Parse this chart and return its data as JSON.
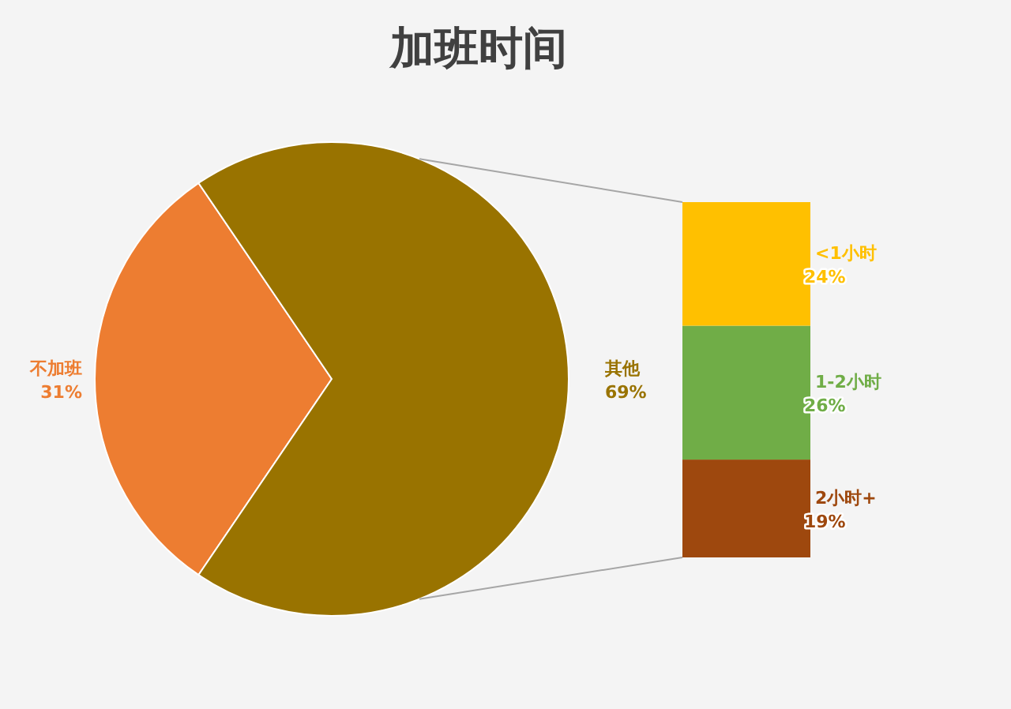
{
  "chart_data": [
    {
      "type": "pie",
      "title": "加班时间",
      "categories": [
        "不加班",
        "其他"
      ],
      "values": [
        31,
        69
      ],
      "colors": [
        "#ed7d31",
        "#997300"
      ],
      "value_labels": [
        "31%",
        "69%"
      ]
    },
    {
      "type": "bar",
      "stacked": true,
      "categories": [
        null
      ],
      "series": [
        {
          "name": "2小时+",
          "color": "#9e480e",
          "values": [
            19
          ],
          "value_labels": [
            "19%"
          ]
        },
        {
          "name": "1-2小时",
          "color": "#70ad47",
          "values": [
            26
          ],
          "value_labels": [
            "26%"
          ]
        },
        {
          "name": "<1小时",
          "color": "#ffc000",
          "values": [
            24
          ],
          "value_labels": [
            "24%"
          ]
        }
      ]
    }
  ]
}
